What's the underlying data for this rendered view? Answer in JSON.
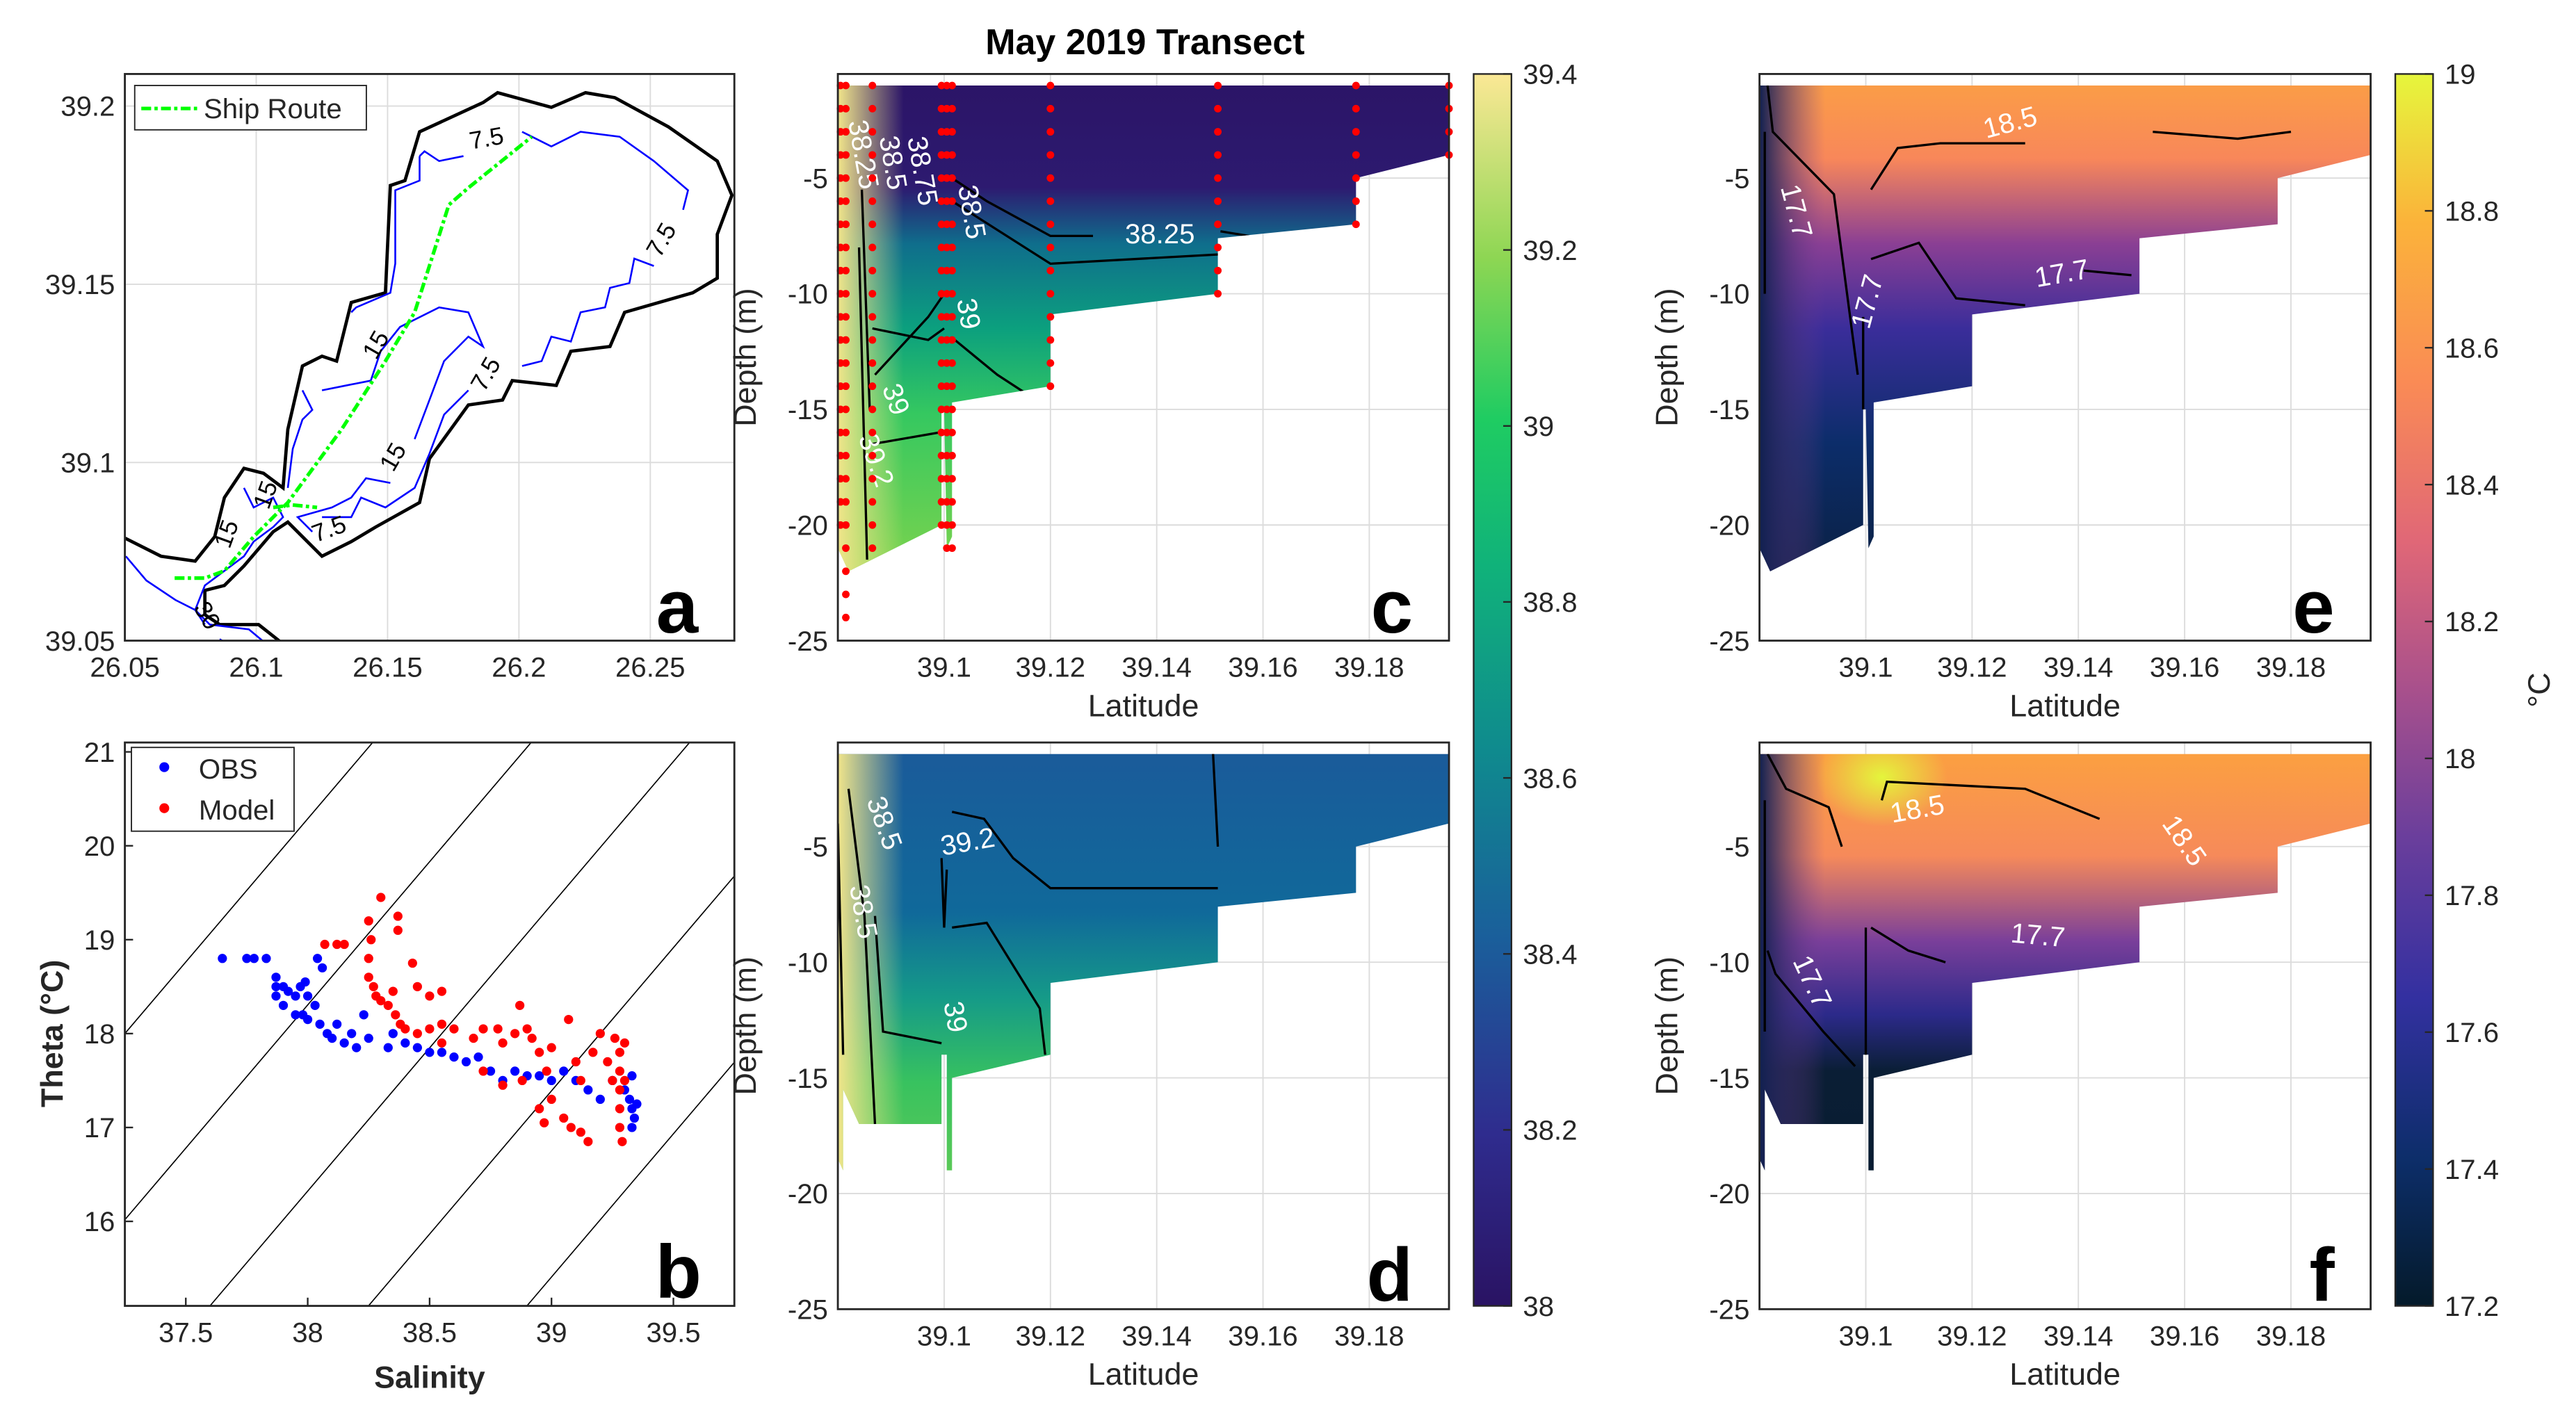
{
  "title": "May 2019 Transect",
  "chart_data": [
    {
      "panel": "a",
      "type": "map",
      "xlim": [
        26.05,
        26.282
      ],
      "ylim": [
        39.05,
        39.209
      ],
      "xticks": [
        "26.05",
        "26.1",
        "26.15",
        "26.2",
        "26.25"
      ],
      "yticks": [
        "39.05",
        "39.1",
        "39.15",
        "39.2"
      ],
      "legend": [
        "Ship Route"
      ],
      "legend_placement": "top-left",
      "contour_labels": [
        "7.5",
        "7.5",
        "7.5",
        "7.5",
        "15",
        "15",
        "15",
        "15",
        "30"
      ],
      "colors": {
        "coast": "#000000",
        "isobath": "#0000ff",
        "route": "#00ff00"
      }
    },
    {
      "panel": "b",
      "type": "scatter",
      "xlabel": "Salinity",
      "ylabel": "Theta (°C)",
      "xlim": [
        37.25,
        39.75
      ],
      "ylim": [
        15.1,
        21.1
      ],
      "xticks": [
        "37.5",
        "38",
        "38.5",
        "39",
        "39.5"
      ],
      "yticks": [
        "16",
        "17",
        "18",
        "19",
        "20",
        "21"
      ],
      "isopycnals": [
        "27",
        "27.5",
        "28",
        "28.5",
        "29"
      ],
      "legend_placement": "top-left",
      "series": [
        {
          "name": "OBS",
          "color": "#0000ff",
          "points": [
            [
              37.65,
              18.8
            ],
            [
              37.75,
              18.8
            ],
            [
              37.78,
              18.8
            ],
            [
              37.83,
              18.8
            ],
            [
              37.87,
              18.6
            ],
            [
              37.87,
              18.5
            ],
            [
              37.87,
              18.4
            ],
            [
              37.9,
              18.5
            ],
            [
              37.9,
              18.3
            ],
            [
              37.92,
              18.45
            ],
            [
              37.95,
              18.4
            ],
            [
              37.97,
              18.5
            ],
            [
              37.99,
              18.55
            ],
            [
              38.0,
              18.4
            ],
            [
              37.95,
              18.2
            ],
            [
              37.98,
              18.2
            ],
            [
              38.0,
              18.15
            ],
            [
              38.03,
              18.3
            ],
            [
              38.04,
              18.8
            ],
            [
              38.06,
              18.7
            ],
            [
              38.05,
              18.1
            ],
            [
              38.08,
              18.0
            ],
            [
              38.1,
              17.95
            ],
            [
              38.12,
              18.1
            ],
            [
              38.15,
              17.9
            ],
            [
              38.18,
              18.0
            ],
            [
              38.2,
              17.85
            ],
            [
              38.23,
              18.2
            ],
            [
              38.25,
              17.95
            ],
            [
              38.35,
              18.0
            ],
            [
              38.33,
              17.85
            ],
            [
              38.4,
              17.9
            ],
            [
              38.45,
              17.85
            ],
            [
              38.5,
              17.8
            ],
            [
              38.55,
              17.8
            ],
            [
              38.6,
              17.75
            ],
            [
              38.65,
              17.7
            ],
            [
              38.7,
              17.75
            ],
            [
              38.75,
              17.6
            ],
            [
              38.8,
              17.5
            ],
            [
              38.85,
              17.6
            ],
            [
              38.9,
              17.55
            ],
            [
              38.95,
              17.55
            ],
            [
              39.0,
              17.5
            ],
            [
              39.05,
              17.6
            ],
            [
              39.1,
              17.5
            ],
            [
              39.15,
              17.4
            ],
            [
              39.2,
              17.3
            ],
            [
              39.25,
              17.5
            ],
            [
              39.3,
              17.4
            ],
            [
              39.32,
              17.3
            ],
            [
              39.33,
              17.2
            ],
            [
              39.34,
              17.1
            ],
            [
              39.33,
              17.0
            ],
            [
              39.35,
              17.25
            ],
            [
              39.33,
              17.55
            ]
          ]
        },
        {
          "name": "Model",
          "color": "#ff0000",
          "points": [
            [
              38.07,
              18.95
            ],
            [
              38.12,
              18.95
            ],
            [
              38.15,
              18.95
            ],
            [
              38.25,
              19.2
            ],
            [
              38.3,
              19.45
            ],
            [
              38.37,
              19.25
            ],
            [
              38.37,
              19.1
            ],
            [
              38.26,
              19.0
            ],
            [
              38.25,
              18.8
            ],
            [
              38.25,
              18.6
            ],
            [
              38.27,
              18.5
            ],
            [
              38.28,
              18.4
            ],
            [
              38.3,
              18.35
            ],
            [
              38.33,
              18.3
            ],
            [
              38.36,
              18.2
            ],
            [
              38.38,
              18.1
            ],
            [
              38.4,
              18.05
            ],
            [
              38.35,
              18.45
            ],
            [
              38.43,
              18.75
            ],
            [
              38.45,
              18.5
            ],
            [
              38.5,
              18.4
            ],
            [
              38.55,
              18.45
            ],
            [
              38.45,
              18.0
            ],
            [
              38.5,
              18.05
            ],
            [
              38.55,
              18.1
            ],
            [
              38.6,
              18.05
            ],
            [
              38.55,
              17.9
            ],
            [
              38.68,
              17.95
            ],
            [
              38.72,
              18.05
            ],
            [
              38.78,
              18.05
            ],
            [
              38.8,
              17.9
            ],
            [
              38.85,
              18.0
            ],
            [
              38.87,
              18.3
            ],
            [
              38.9,
              18.05
            ],
            [
              38.92,
              17.95
            ],
            [
              38.95,
              17.8
            ],
            [
              38.98,
              17.6
            ],
            [
              39.0,
              17.85
            ],
            [
              38.95,
              17.2
            ],
            [
              38.97,
              17.05
            ],
            [
              39.0,
              17.3
            ],
            [
              39.05,
              17.1
            ],
            [
              39.07,
              18.15
            ],
            [
              39.1,
              17.7
            ],
            [
              39.12,
              17.5
            ],
            [
              39.08,
              17.0
            ],
            [
              39.12,
              16.95
            ],
            [
              39.15,
              16.85
            ],
            [
              39.17,
              17.8
            ],
            [
              39.2,
              18.0
            ],
            [
              39.23,
              17.7
            ],
            [
              39.26,
              17.95
            ],
            [
              39.28,
              17.8
            ],
            [
              39.28,
              17.6
            ],
            [
              39.28,
              17.4
            ],
            [
              39.28,
              17.2
            ],
            [
              39.28,
              17.0
            ],
            [
              39.29,
              16.85
            ],
            [
              39.3,
              17.9
            ],
            [
              39.3,
              17.5
            ],
            [
              39.25,
              17.5
            ],
            [
              38.72,
              17.6
            ],
            [
              38.8,
              17.45
            ],
            [
              38.88,
              17.5
            ]
          ]
        }
      ]
    },
    {
      "panel": "c",
      "type": "heatmap",
      "variable": "salinity (observed)",
      "xlabel": "Latitude",
      "ylabel": "Depth (m)",
      "xlim": [
        39.08,
        39.195
      ],
      "ylim": [
        -25,
        -0.5
      ],
      "contour_labels": [
        "38.25",
        "38.25",
        "38.5",
        "38.75",
        "39",
        "39.2",
        "38.5",
        "39"
      ],
      "station_lats": [
        39.0805,
        39.0815,
        39.0865,
        39.0995,
        39.1005,
        39.1015,
        39.12,
        39.1515,
        39.1775,
        39.195
      ]
    },
    {
      "panel": "d",
      "type": "heatmap",
      "variable": "salinity (model)",
      "xlabel": "Latitude",
      "ylabel": "Depth (m)",
      "xlim": [
        39.08,
        39.195
      ],
      "ylim": [
        -25,
        -0.5
      ],
      "contour_labels": [
        "38.5",
        "39.2",
        "38.5",
        "39"
      ]
    },
    {
      "panel": "e",
      "type": "heatmap",
      "variable": "temperature (observed)",
      "xlabel": "Latitude",
      "ylabel": "Depth (m)",
      "xlim": [
        39.08,
        39.195
      ],
      "ylim": [
        -25,
        -0.5
      ],
      "contour_labels": [
        "18.5",
        "17.7",
        "17.7",
        "17.7"
      ]
    },
    {
      "panel": "f",
      "type": "heatmap",
      "variable": "temperature (model)",
      "xlabel": "Latitude",
      "ylabel": "Depth (m)",
      "xlim": [
        39.08,
        39.195
      ],
      "ylim": [
        -25,
        -0.5
      ],
      "contour_labels": [
        "18.5",
        "18.5",
        "17.7",
        "17.7"
      ]
    },
    {
      "type": "colorbar",
      "for": [
        "c",
        "d"
      ],
      "range": [
        38,
        39.4
      ],
      "ticks": [
        "38",
        "38.2",
        "38.4",
        "38.6",
        "38.8",
        "39",
        "39.2",
        "39.4"
      ],
      "colormap": "viridis-like"
    },
    {
      "type": "colorbar",
      "for": [
        "e",
        "f"
      ],
      "range": [
        17.2,
        19
      ],
      "ticks": [
        "17.2",
        "17.4",
        "17.6",
        "17.8",
        "18",
        "18.2",
        "18.4",
        "18.6",
        "18.8",
        "19"
      ],
      "label": "°C",
      "colormap": "thermal"
    }
  ],
  "transect_xticks": [
    "39.1",
    "39.12",
    "39.14",
    "39.16",
    "39.18"
  ],
  "transect_yticks": [
    "-5",
    "-10",
    "-15",
    "-20",
    "-25"
  ],
  "letters": [
    "a",
    "b",
    "c",
    "d",
    "e",
    "f"
  ]
}
